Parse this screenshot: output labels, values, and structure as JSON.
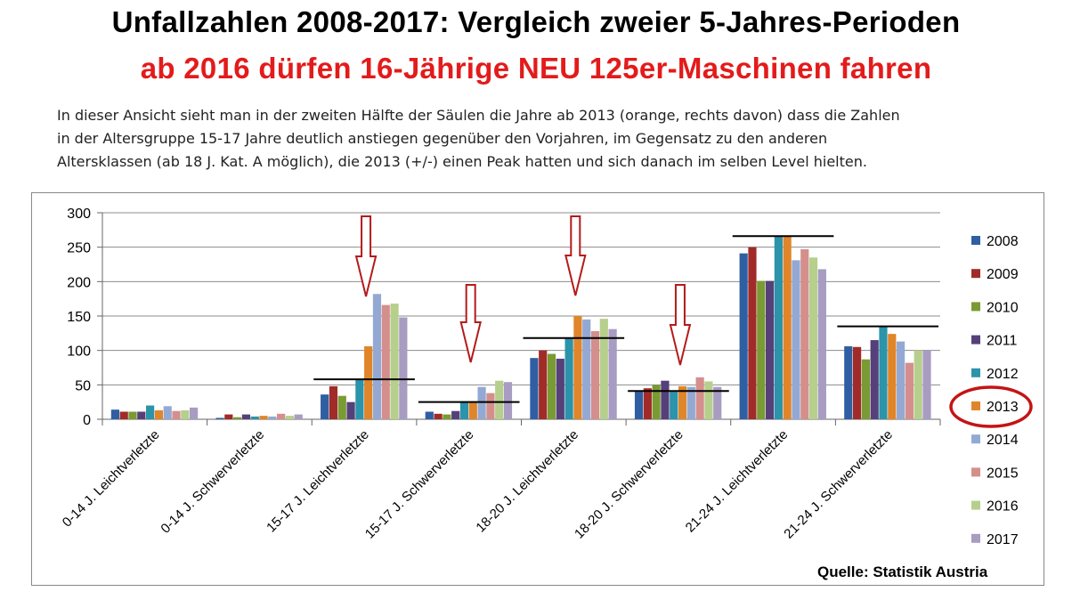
{
  "header": {
    "title": "Unfallzahlen 2008-2017: Vergleich zweier 5-Jahres-Perioden",
    "subtitle": "ab 2016 dürfen 16-Jährige NEU 125er-Maschinen fahren"
  },
  "description": {
    "line1": "In dieser Ansicht sieht man in der zweiten Hälfte der Säulen die Jahre ab 2013 (orange, rechts davon) dass die Zahlen",
    "line2": "in der Altersgruppe 15-17 Jahre  deutlich anstiegen gegenüber den Vorjahren, im Gegensatz zu den anderen",
    "line3": "Altersklassen (ab 18 J. Kat. A möglich), die 2013 (+/-) einen Peak  hatten und sich danach im selben Level hielten."
  },
  "source": "Quelle: Statistik Austria",
  "colors": {
    "series": [
      "#2f5fa2",
      "#a12b28",
      "#7a9a34",
      "#55407a",
      "#2b93aa",
      "#e0852a",
      "#93a9d4",
      "#d48f8c",
      "#b7cf8d",
      "#a89cc2"
    ],
    "arrow": "#b31b1b",
    "highlight_circle": "#c41414",
    "reference_line": "#000000",
    "grid": "#8c8c8c"
  },
  "chart_data": {
    "type": "bar",
    "title": "",
    "xlabel": "",
    "ylabel": "",
    "ylim": [
      0,
      300
    ],
    "yticks": [
      0,
      50,
      100,
      150,
      200,
      250,
      300
    ],
    "grid": true,
    "legend_position": "right",
    "categories": [
      "0-14 J. Leichtverletzte",
      "0-14 J. Schwerverletzte",
      "15-17 J. Leichtverletzte",
      "15-17 J. Schwerverletzte",
      "18-20 J. Leichtverletzte",
      "18-20 J. Schwerverletzte",
      "21-24 J. Leichtverletzte",
      "21-24 J. Schwerverletzte"
    ],
    "series": [
      {
        "name": "2008",
        "values": [
          14,
          2,
          36,
          11,
          89,
          40,
          241,
          106
        ]
      },
      {
        "name": "2009",
        "values": [
          11,
          7,
          48,
          8,
          100,
          45,
          250,
          105
        ]
      },
      {
        "name": "2010",
        "values": [
          11,
          3,
          34,
          7,
          95,
          50,
          201,
          87
        ]
      },
      {
        "name": "2011",
        "values": [
          11,
          7,
          25,
          12,
          88,
          56,
          201,
          115
        ]
      },
      {
        "name": "2012",
        "values": [
          20,
          4,
          57,
          26,
          118,
          40,
          266,
          134
        ]
      },
      {
        "name": "2013",
        "values": [
          13,
          5,
          106,
          26,
          150,
          48,
          267,
          124
        ]
      },
      {
        "name": "2014",
        "values": [
          19,
          4,
          182,
          47,
          145,
          47,
          231,
          113
        ]
      },
      {
        "name": "2015",
        "values": [
          12,
          8,
          166,
          38,
          128,
          61,
          247,
          82
        ]
      },
      {
        "name": "2016",
        "values": [
          13,
          5,
          168,
          56,
          146,
          55,
          235,
          100
        ]
      },
      {
        "name": "2017",
        "values": [
          17,
          7,
          148,
          54,
          131,
          47,
          218,
          100
        ]
      }
    ],
    "reference_lines": [
      {
        "category_span": [
          2,
          2
        ],
        "value": 58
      },
      {
        "category_span": [
          3,
          3
        ],
        "value": 25
      },
      {
        "category_span": [
          4,
          4
        ],
        "value": 118
      },
      {
        "category_span": [
          5,
          5
        ],
        "value": 41
      },
      {
        "category_span": [
          6,
          6
        ],
        "value": 266
      },
      {
        "category_span": [
          7,
          7
        ],
        "value": 135
      }
    ],
    "arrow_categories": [
      2,
      3,
      4,
      5
    ],
    "highlighted_legend_entry": "2013"
  }
}
